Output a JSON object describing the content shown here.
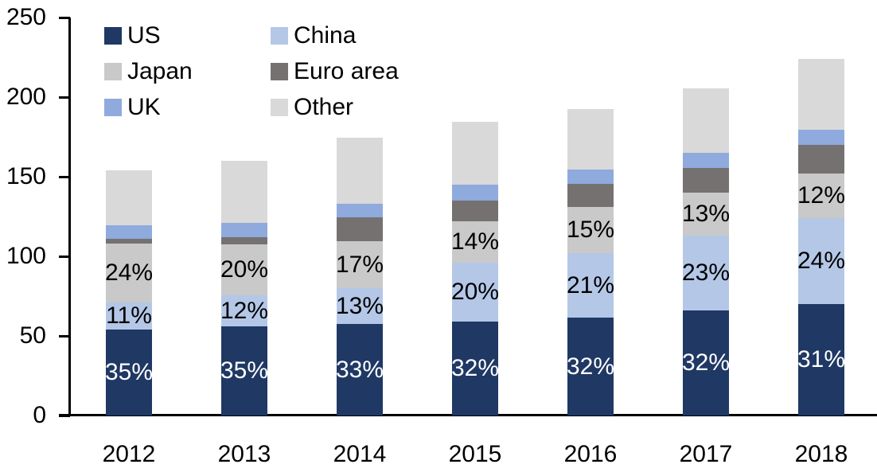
{
  "chart_data": {
    "type": "bar",
    "stacked": true,
    "title": "",
    "categories": [
      "2012",
      "2013",
      "2014",
      "2015",
      "2016",
      "2017",
      "2018"
    ],
    "series": [
      {
        "name": "US",
        "color": "#1F3864",
        "label_color": "#FFFFFF",
        "values": [
          54,
          56,
          57.5,
          59,
          61.5,
          66,
          70
        ],
        "labels": [
          "35%",
          "35%",
          "33%",
          "32%",
          "32%",
          "32%",
          "31%"
        ]
      },
      {
        "name": "China",
        "color": "#B4C7E7",
        "label_color": "#000000",
        "values": [
          17,
          19.5,
          22.5,
          37,
          40.5,
          47,
          54
        ],
        "labels": [
          "11%",
          "12%",
          "13%",
          "20%",
          "21%",
          "23%",
          "24%"
        ]
      },
      {
        "name": "Japan",
        "color": "#C9C9C9",
        "label_color": "#000000",
        "values": [
          37,
          32,
          29.5,
          26,
          29,
          27,
          28
        ],
        "labels": [
          "24%",
          "20%",
          "17%",
          "14%",
          "15%",
          "13%",
          "12%"
        ]
      },
      {
        "name": "Euro area",
        "color": "#767171",
        "label_color": "",
        "values": [
          3,
          4.5,
          15,
          13,
          14.5,
          15.5,
          18
        ],
        "labels": [
          "",
          "",
          "",
          "",
          "",
          "",
          ""
        ]
      },
      {
        "name": "UK",
        "color": "#8FAADC",
        "label_color": "",
        "values": [
          8.5,
          9,
          8.5,
          10,
          9,
          9.5,
          9.5
        ],
        "labels": [
          "",
          "",
          "",
          "",
          "",
          "",
          ""
        ]
      },
      {
        "name": "Other",
        "color": "#D9D9D9",
        "label_color": "",
        "values": [
          34.5,
          39,
          41.5,
          39.5,
          38,
          40.5,
          44.5
        ],
        "labels": [
          "",
          "",
          "",
          "",
          "",
          "",
          ""
        ]
      }
    ],
    "totals": [
      154,
      160,
      174.5,
      184.5,
      192.5,
      205.5,
      224
    ],
    "y_axis": {
      "min": 0,
      "max": 250,
      "step": 50,
      "ticks": [
        "0",
        "50",
        "100",
        "150",
        "200",
        "250"
      ]
    },
    "xlabel": "",
    "ylabel": "",
    "grid": false,
    "legend": {
      "position": "top-left-inside",
      "columns": 2,
      "items": [
        "US",
        "China",
        "Japan",
        "Euro area",
        "UK",
        "Other"
      ]
    }
  },
  "layout_colors": {
    "axis": "#000000",
    "background": "#FFFFFF"
  }
}
